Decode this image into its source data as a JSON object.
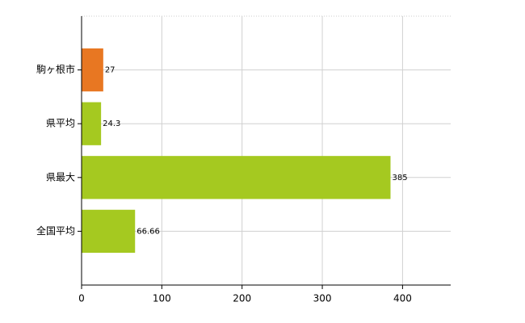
{
  "chart_data": {
    "type": "bar",
    "orientation": "horizontal",
    "categories": [
      "駒ヶ根市",
      "県平均",
      "県最大",
      "全国平均"
    ],
    "values": [
      27,
      24.3,
      385,
      66.66
    ],
    "colors": [
      "#e87722",
      "#a5c920",
      "#a5c920",
      "#a5c920"
    ],
    "xlim": [
      0,
      460
    ],
    "xticks": [
      0,
      100,
      200,
      300,
      400
    ],
    "grid": true
  }
}
